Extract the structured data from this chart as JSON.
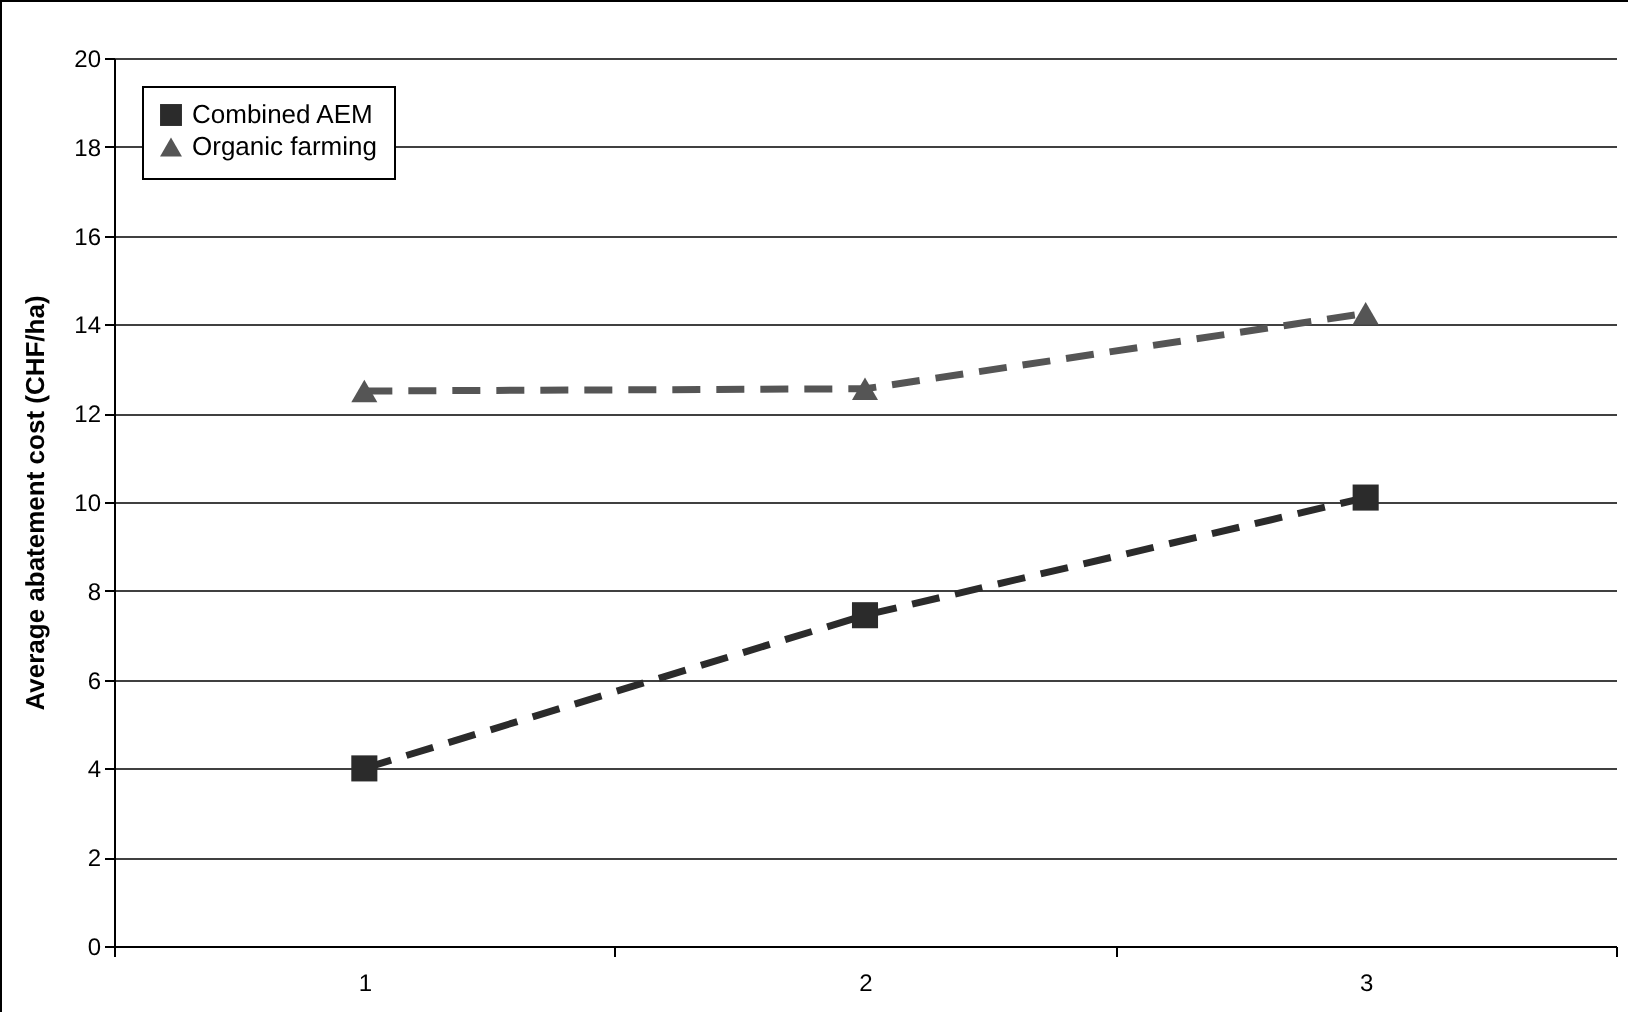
{
  "chart_data": {
    "type": "line",
    "ylabel": "Average abatement cost (CHF/ha)",
    "categories": [
      "1",
      "2",
      "3"
    ],
    "series": [
      {
        "name": "Combined AEM",
        "color": "#2b2b2b",
        "marker": "square",
        "values": [
          4.0,
          7.45,
          10.1
        ]
      },
      {
        "name": "Organic farming",
        "color": "#555555",
        "marker": "triangle",
        "values": [
          12.5,
          12.55,
          14.25
        ]
      }
    ],
    "ylim": [
      0,
      20
    ],
    "yticks": [
      0,
      2,
      4,
      6,
      8,
      10,
      12,
      14,
      16,
      18,
      20
    ],
    "grid": "y",
    "legend": "top left",
    "line_style": "dashed"
  }
}
